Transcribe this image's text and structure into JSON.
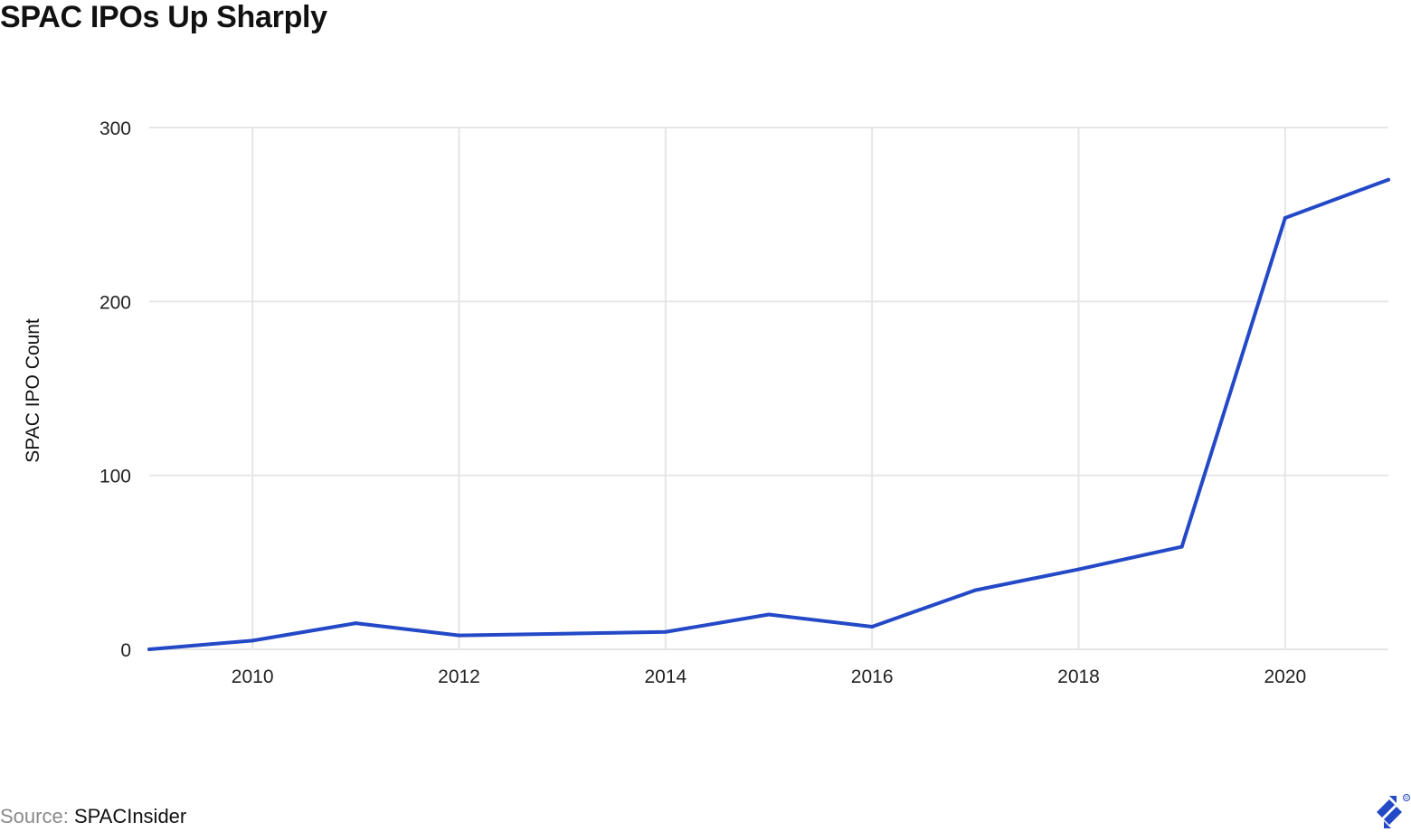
{
  "title": "SPAC IPOs Up Sharply",
  "source": {
    "prefix": "Source: ",
    "name": "SPACInsider"
  },
  "logo_icon": "toptal-logo-icon",
  "colors": {
    "line": "#2449c7",
    "grid": "#e6e6e6"
  },
  "chart_data": {
    "type": "line",
    "title": "SPAC IPOs Up Sharply",
    "xlabel": "",
    "ylabel": "SPAC IPO Count",
    "xlim": [
      2009,
      2021
    ],
    "ylim": [
      0,
      300
    ],
    "xticks": [
      "2010",
      "2012",
      "2014",
      "2016",
      "2018",
      "2020"
    ],
    "yticks": [
      "0",
      "100",
      "200",
      "300"
    ],
    "grid": true,
    "legend": "none",
    "series": [
      {
        "x": [
          2009,
          2010,
          2011,
          2012,
          2013,
          2014,
          2015,
          2016,
          2017,
          2018,
          2019,
          2020,
          2021
        ],
        "y": [
          0,
          5,
          15,
          8,
          9,
          10,
          20,
          13,
          34,
          46,
          59,
          248,
          270
        ]
      }
    ]
  }
}
